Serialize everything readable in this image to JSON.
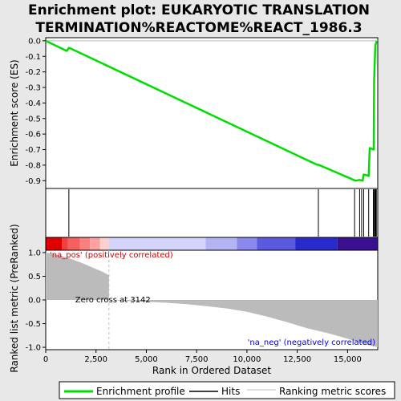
{
  "chart_data": {
    "type": "line",
    "title_lines": [
      "Enrichment plot: EUKARYOTIC TRANSLATION",
      "TERMINATION%REACTOME%REACT_1986.3"
    ],
    "xlabel": "Rank in Ordered Dataset",
    "ylabel_top": "Enrichment score (ES)",
    "ylabel_bottom": "Ranked list metric (PreRanked)",
    "xlim": [
      0,
      16500
    ],
    "x_ticks": [
      0,
      2500,
      5000,
      7500,
      10000,
      12500,
      15000
    ],
    "x_tick_labels": [
      "0",
      "2,500",
      "5,000",
      "7,500",
      "10,000",
      "12,500",
      "15,000"
    ],
    "es_ylim": [
      -0.95,
      0.02
    ],
    "es_ticks": [
      0.0,
      -0.1,
      -0.2,
      -0.3,
      -0.4,
      -0.5,
      -0.6,
      -0.7,
      -0.8,
      -0.9
    ],
    "es_tick_labels": [
      "0.0",
      "-0.1",
      "-0.2",
      "-0.3",
      "-0.4",
      "-0.5",
      "-0.6",
      "-0.7",
      "-0.8",
      "-0.9"
    ],
    "metric_ylim": [
      -1.05,
      1.05
    ],
    "metric_ticks": [
      1.0,
      0.5,
      0.0,
      -0.5,
      -1.0
    ],
    "metric_tick_labels": [
      "1.0",
      "0.5",
      "0.0",
      "-0.5",
      "-1.0"
    ],
    "es_profile": [
      [
        0,
        0.0
      ],
      [
        1050,
        -0.065
      ],
      [
        1150,
        -0.045
      ],
      [
        1250,
        -0.05
      ],
      [
        13450,
        -0.795
      ],
      [
        13600,
        -0.8
      ],
      [
        15400,
        -0.9
      ],
      [
        15600,
        -0.895
      ],
      [
        15750,
        -0.9
      ],
      [
        15800,
        -0.86
      ],
      [
        15950,
        -0.865
      ],
      [
        16050,
        -0.87
      ],
      [
        16100,
        -0.69
      ],
      [
        16300,
        -0.7
      ],
      [
        16320,
        -0.25
      ],
      [
        16380,
        -0.03
      ],
      [
        16450,
        0.0
      ]
    ],
    "hits": [
      1150,
      13550,
      15350,
      15600,
      15700,
      15800,
      16050,
      16280,
      16330,
      16360,
      16400,
      16430
    ],
    "metric_curve": [
      [
        0,
        1.0
      ],
      [
        300,
        0.98
      ],
      [
        800,
        0.93
      ],
      [
        1300,
        0.86
      ],
      [
        1800,
        0.78
      ],
      [
        2300,
        0.69
      ],
      [
        2800,
        0.6
      ],
      [
        3142,
        0.52
      ],
      [
        3143,
        0.0
      ],
      [
        4000,
        -0.02
      ],
      [
        5000,
        -0.04
      ],
      [
        6000,
        -0.06
      ],
      [
        7000,
        -0.09
      ],
      [
        8000,
        -0.13
      ],
      [
        9000,
        -0.18
      ],
      [
        10000,
        -0.25
      ],
      [
        11000,
        -0.35
      ],
      [
        12000,
        -0.47
      ],
      [
        13000,
        -0.6
      ],
      [
        14000,
        -0.7
      ],
      [
        15000,
        -0.82
      ],
      [
        15800,
        -0.93
      ],
      [
        16300,
        -0.98
      ],
      [
        16500,
        -1.0
      ]
    ],
    "color_bar_segments": [
      {
        "from": 0,
        "to": 800,
        "color": "#e00000"
      },
      {
        "from": 800,
        "to": 1100,
        "color": "#f04040"
      },
      {
        "from": 1100,
        "to": 1700,
        "color": "#f76060"
      },
      {
        "from": 1700,
        "to": 2200,
        "color": "#fb8080"
      },
      {
        "from": 2200,
        "to": 2700,
        "color": "#fca0a0"
      },
      {
        "from": 2700,
        "to": 3142,
        "color": "#fdd0d0"
      },
      {
        "from": 3142,
        "to": 7950,
        "color": "#d4d4fa"
      },
      {
        "from": 7950,
        "to": 9500,
        "color": "#b4b4f4"
      },
      {
        "from": 9500,
        "to": 10500,
        "color": "#8a8aee"
      },
      {
        "from": 10500,
        "to": 12400,
        "color": "#5a5ae0"
      },
      {
        "from": 12400,
        "to": 14500,
        "color": "#2a2acc"
      },
      {
        "from": 14500,
        "to": 16500,
        "color": "#3a1090"
      }
    ],
    "annotations": {
      "pos_label": "'na_pos' (positively correlated)",
      "neg_label": "'na_neg' (negatively correlated)",
      "zero_cross_label": "Zero cross at 3142",
      "zero_cross_x": 3142
    },
    "legend": {
      "placement": "bottom",
      "entries": [
        "Enrichment profile",
        "Hits",
        "Ranking metric scores"
      ]
    },
    "colors": {
      "profile": "#00dd00",
      "hits": "#000000",
      "metric": "#bbbbbb",
      "pos_label": "#cc0000",
      "neg_label": "#0000cc",
      "zero_line": "#bbbbbb"
    }
  }
}
